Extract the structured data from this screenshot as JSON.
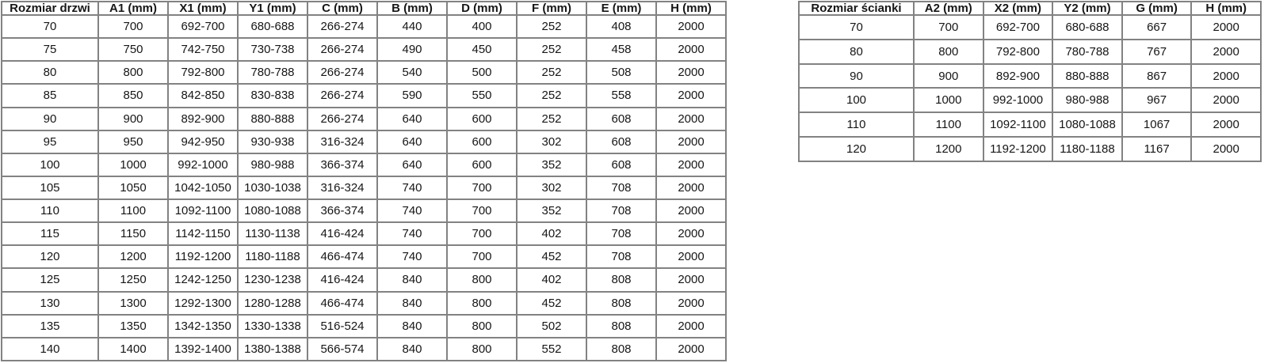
{
  "colors": {
    "background": "#ffffff",
    "table_border": "#828282",
    "text": "#161616"
  },
  "tables": [
    {
      "name": "door-dimensions-table",
      "headers": [
        "Rozmiar drzwi",
        "A1 (mm)",
        "X1 (mm)",
        "Y1 (mm)",
        "C (mm)",
        "B (mm)",
        "D (mm)",
        "F (mm)",
        "E (mm)",
        "H (mm)"
      ],
      "rows": [
        [
          "70",
          "700",
          "692-700",
          "680-688",
          "266-274",
          "440",
          "400",
          "252",
          "408",
          "2000"
        ],
        [
          "75",
          "750",
          "742-750",
          "730-738",
          "266-274",
          "490",
          "450",
          "252",
          "458",
          "2000"
        ],
        [
          "80",
          "800",
          "792-800",
          "780-788",
          "266-274",
          "540",
          "500",
          "252",
          "508",
          "2000"
        ],
        [
          "85",
          "850",
          "842-850",
          "830-838",
          "266-274",
          "590",
          "550",
          "252",
          "558",
          "2000"
        ],
        [
          "90",
          "900",
          "892-900",
          "880-888",
          "266-274",
          "640",
          "600",
          "252",
          "608",
          "2000"
        ],
        [
          "95",
          "950",
          "942-950",
          "930-938",
          "316-324",
          "640",
          "600",
          "302",
          "608",
          "2000"
        ],
        [
          "100",
          "1000",
          "992-1000",
          "980-988",
          "366-374",
          "640",
          "600",
          "352",
          "608",
          "2000"
        ],
        [
          "105",
          "1050",
          "1042-1050",
          "1030-1038",
          "316-324",
          "740",
          "700",
          "302",
          "708",
          "2000"
        ],
        [
          "110",
          "1100",
          "1092-1100",
          "1080-1088",
          "366-374",
          "740",
          "700",
          "352",
          "708",
          "2000"
        ],
        [
          "115",
          "1150",
          "1142-1150",
          "1130-1138",
          "416-424",
          "740",
          "700",
          "402",
          "708",
          "2000"
        ],
        [
          "120",
          "1200",
          "1192-1200",
          "1180-1188",
          "466-474",
          "740",
          "700",
          "452",
          "708",
          "2000"
        ],
        [
          "125",
          "1250",
          "1242-1250",
          "1230-1238",
          "416-424",
          "840",
          "800",
          "402",
          "808",
          "2000"
        ],
        [
          "130",
          "1300",
          "1292-1300",
          "1280-1288",
          "466-474",
          "840",
          "800",
          "452",
          "808",
          "2000"
        ],
        [
          "135",
          "1350",
          "1342-1350",
          "1330-1338",
          "516-524",
          "840",
          "800",
          "502",
          "808",
          "2000"
        ],
        [
          "140",
          "1400",
          "1392-1400",
          "1380-1388",
          "566-574",
          "840",
          "800",
          "552",
          "808",
          "2000"
        ]
      ]
    },
    {
      "name": "wall-panel-dimensions-table",
      "headers": [
        "Rozmiar ścianki",
        "A2 (mm)",
        "X2 (mm)",
        "Y2 (mm)",
        "G (mm)",
        "H (mm)"
      ],
      "rows": [
        [
          "70",
          "700",
          "692-700",
          "680-688",
          "667",
          "2000"
        ],
        [
          "80",
          "800",
          "792-800",
          "780-788",
          "767",
          "2000"
        ],
        [
          "90",
          "900",
          "892-900",
          "880-888",
          "867",
          "2000"
        ],
        [
          "100",
          "1000",
          "992-1000",
          "980-988",
          "967",
          "2000"
        ],
        [
          "110",
          "1100",
          "1092-1100",
          "1080-1088",
          "1067",
          "2000"
        ],
        [
          "120",
          "1200",
          "1192-1200",
          "1180-1188",
          "1167",
          "2000"
        ]
      ]
    }
  ]
}
